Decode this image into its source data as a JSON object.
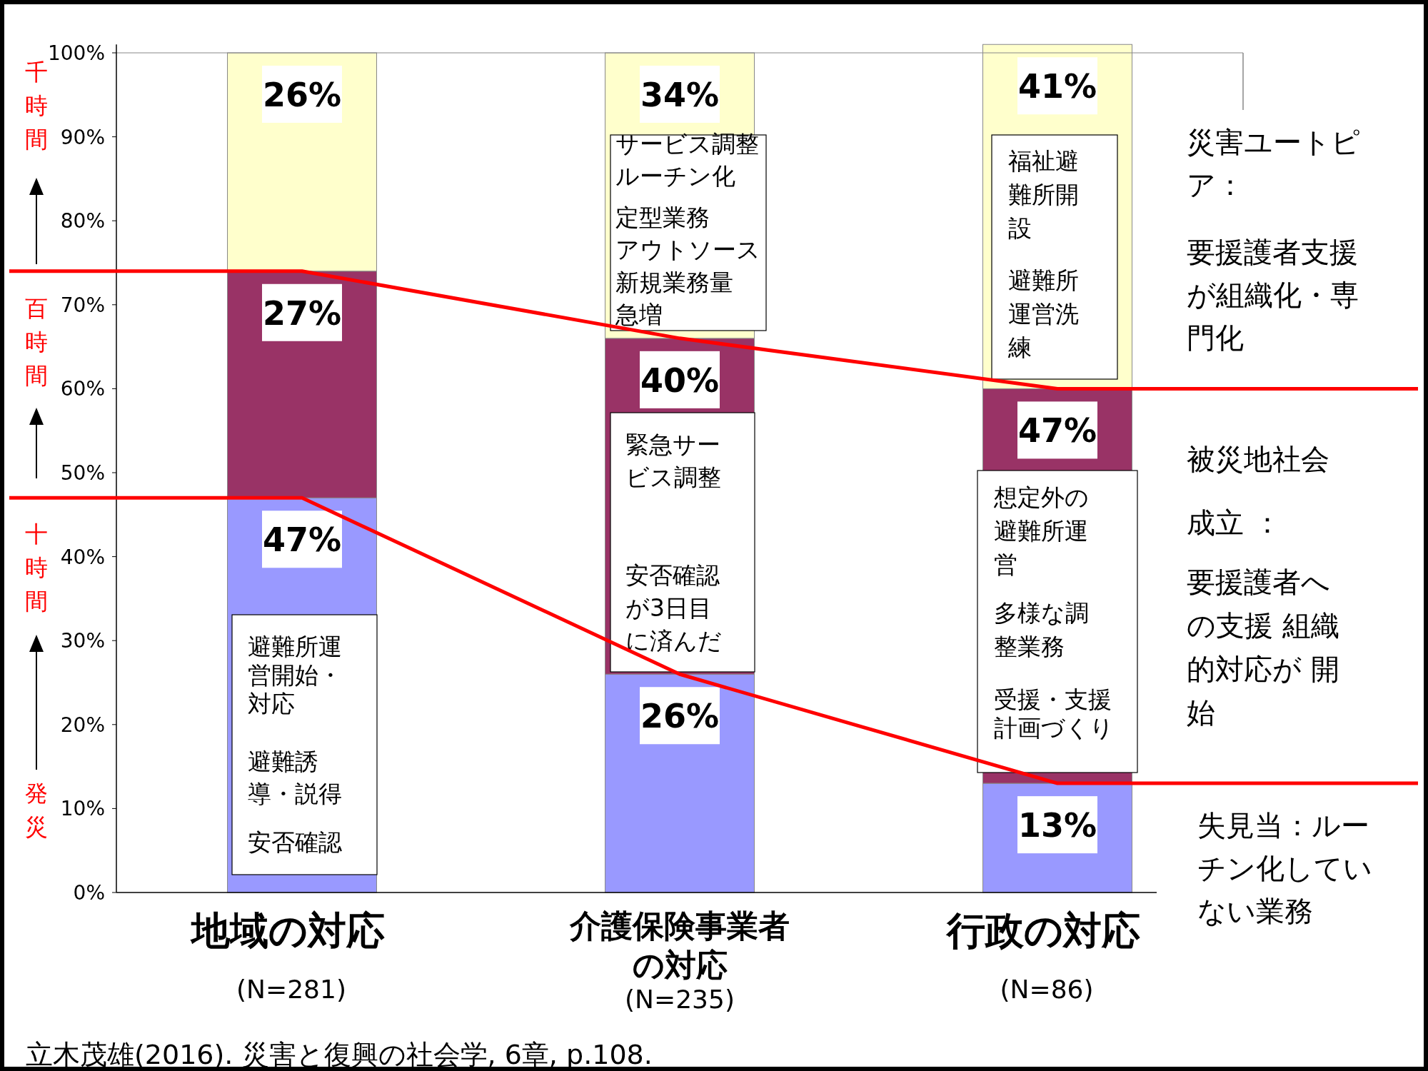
{
  "chart_data": {
    "type": "bar",
    "stacked": true,
    "categories": [
      "地域の対応\n(N=281)",
      "介護保険事業者の対応\n(N=235)",
      "行政の対応\n(N=86)"
    ],
    "series": [
      {
        "color": "#9999ff",
        "values": [
          47,
          26,
          13
        ],
        "value_labels": [
          "47%",
          "26%",
          "13%"
        ]
      },
      {
        "color": "#993366",
        "values": [
          27,
          40,
          47
        ],
        "value_labels": [
          "27%",
          "40%",
          "47%"
        ]
      },
      {
        "color": "#ffffcc",
        "values": [
          26,
          34,
          41
        ],
        "value_labels": [
          "26%",
          "34%",
          "41%"
        ]
      },
      {
        "type": "line",
        "color": "#ff0000",
        "values": [
          47,
          26,
          13
        ]
      },
      {
        "type": "line",
        "color": "#ff0000",
        "values": [
          74,
          66,
          60
        ]
      }
    ],
    "ylim": [
      0,
      101
    ],
    "yticks": [
      {
        "value": 0,
        "label": "0%"
      },
      {
        "value": 10,
        "label": "10%"
      },
      {
        "value": 20,
        "label": "20%"
      },
      {
        "value": 30,
        "label": "30%"
      },
      {
        "value": 40,
        "label": "40%"
      },
      {
        "value": 50,
        "label": "50%"
      },
      {
        "value": 60,
        "label": "60%"
      },
      {
        "value": 70,
        "label": "70%"
      },
      {
        "value": 80,
        "label": "80%"
      },
      {
        "value": 90,
        "label": "90%"
      },
      {
        "value": 100,
        "label": "100%"
      }
    ],
    "annotations": [
      "千時間",
      "百時間",
      "十時間",
      "発災",
      "避難所運営開始・対応",
      "避難誘導・説得",
      "安否確認",
      "サービス調整ルーチン化",
      "定型業務アウトソース",
      "新規業務量急増",
      "緊急サービス調整",
      "安否確認が3日目に済んだ",
      "福祉避難所開設",
      "避難所運営洗練",
      "想定外の避難所運営",
      "多様な調整業務",
      "受援・支援計画づくり",
      "災害ユートピア：",
      "要援護者支援が組織化・専門化",
      "被災地社会",
      "成立 ：",
      "要援護者への支援 組織的対応が 開始",
      "失見当：ルーチン化していない業務",
      "立木茂雄(2016). 災害と復興の社会学, 6章, p.108."
    ]
  }
}
